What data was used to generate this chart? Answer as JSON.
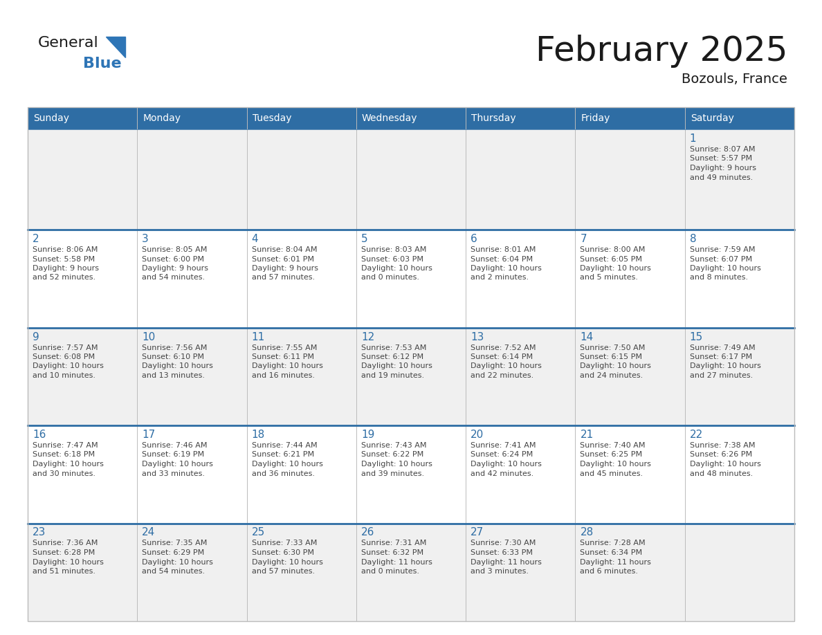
{
  "title": "February 2025",
  "subtitle": "Bozouls, France",
  "header_bg": "#2E6DA4",
  "header_text_color": "#FFFFFF",
  "row_bg": [
    "#F0F0F0",
    "#FFFFFF",
    "#F0F0F0",
    "#FFFFFF",
    "#F0F0F0"
  ],
  "separator_color": "#2E6DA4",
  "day_number_color": "#2E6DA4",
  "text_color": "#444444",
  "weekdays": [
    "Sunday",
    "Monday",
    "Tuesday",
    "Wednesday",
    "Thursday",
    "Friday",
    "Saturday"
  ],
  "days": [
    {
      "day": 1,
      "col": 6,
      "row": 0,
      "sunrise": "8:07 AM",
      "sunset": "5:57 PM",
      "daylight_line1": "Daylight: 9 hours",
      "daylight_line2": "and 49 minutes."
    },
    {
      "day": 2,
      "col": 0,
      "row": 1,
      "sunrise": "8:06 AM",
      "sunset": "5:58 PM",
      "daylight_line1": "Daylight: 9 hours",
      "daylight_line2": "and 52 minutes."
    },
    {
      "day": 3,
      "col": 1,
      "row": 1,
      "sunrise": "8:05 AM",
      "sunset": "6:00 PM",
      "daylight_line1": "Daylight: 9 hours",
      "daylight_line2": "and 54 minutes."
    },
    {
      "day": 4,
      "col": 2,
      "row": 1,
      "sunrise": "8:04 AM",
      "sunset": "6:01 PM",
      "daylight_line1": "Daylight: 9 hours",
      "daylight_line2": "and 57 minutes."
    },
    {
      "day": 5,
      "col": 3,
      "row": 1,
      "sunrise": "8:03 AM",
      "sunset": "6:03 PM",
      "daylight_line1": "Daylight: 10 hours",
      "daylight_line2": "and 0 minutes."
    },
    {
      "day": 6,
      "col": 4,
      "row": 1,
      "sunrise": "8:01 AM",
      "sunset": "6:04 PM",
      "daylight_line1": "Daylight: 10 hours",
      "daylight_line2": "and 2 minutes."
    },
    {
      "day": 7,
      "col": 5,
      "row": 1,
      "sunrise": "8:00 AM",
      "sunset": "6:05 PM",
      "daylight_line1": "Daylight: 10 hours",
      "daylight_line2": "and 5 minutes."
    },
    {
      "day": 8,
      "col": 6,
      "row": 1,
      "sunrise": "7:59 AM",
      "sunset": "6:07 PM",
      "daylight_line1": "Daylight: 10 hours",
      "daylight_line2": "and 8 minutes."
    },
    {
      "day": 9,
      "col": 0,
      "row": 2,
      "sunrise": "7:57 AM",
      "sunset": "6:08 PM",
      "daylight_line1": "Daylight: 10 hours",
      "daylight_line2": "and 10 minutes."
    },
    {
      "day": 10,
      "col": 1,
      "row": 2,
      "sunrise": "7:56 AM",
      "sunset": "6:10 PM",
      "daylight_line1": "Daylight: 10 hours",
      "daylight_line2": "and 13 minutes."
    },
    {
      "day": 11,
      "col": 2,
      "row": 2,
      "sunrise": "7:55 AM",
      "sunset": "6:11 PM",
      "daylight_line1": "Daylight: 10 hours",
      "daylight_line2": "and 16 minutes."
    },
    {
      "day": 12,
      "col": 3,
      "row": 2,
      "sunrise": "7:53 AM",
      "sunset": "6:12 PM",
      "daylight_line1": "Daylight: 10 hours",
      "daylight_line2": "and 19 minutes."
    },
    {
      "day": 13,
      "col": 4,
      "row": 2,
      "sunrise": "7:52 AM",
      "sunset": "6:14 PM",
      "daylight_line1": "Daylight: 10 hours",
      "daylight_line2": "and 22 minutes."
    },
    {
      "day": 14,
      "col": 5,
      "row": 2,
      "sunrise": "7:50 AM",
      "sunset": "6:15 PM",
      "daylight_line1": "Daylight: 10 hours",
      "daylight_line2": "and 24 minutes."
    },
    {
      "day": 15,
      "col": 6,
      "row": 2,
      "sunrise": "7:49 AM",
      "sunset": "6:17 PM",
      "daylight_line1": "Daylight: 10 hours",
      "daylight_line2": "and 27 minutes."
    },
    {
      "day": 16,
      "col": 0,
      "row": 3,
      "sunrise": "7:47 AM",
      "sunset": "6:18 PM",
      "daylight_line1": "Daylight: 10 hours",
      "daylight_line2": "and 30 minutes."
    },
    {
      "day": 17,
      "col": 1,
      "row": 3,
      "sunrise": "7:46 AM",
      "sunset": "6:19 PM",
      "daylight_line1": "Daylight: 10 hours",
      "daylight_line2": "and 33 minutes."
    },
    {
      "day": 18,
      "col": 2,
      "row": 3,
      "sunrise": "7:44 AM",
      "sunset": "6:21 PM",
      "daylight_line1": "Daylight: 10 hours",
      "daylight_line2": "and 36 minutes."
    },
    {
      "day": 19,
      "col": 3,
      "row": 3,
      "sunrise": "7:43 AM",
      "sunset": "6:22 PM",
      "daylight_line1": "Daylight: 10 hours",
      "daylight_line2": "and 39 minutes."
    },
    {
      "day": 20,
      "col": 4,
      "row": 3,
      "sunrise": "7:41 AM",
      "sunset": "6:24 PM",
      "daylight_line1": "Daylight: 10 hours",
      "daylight_line2": "and 42 minutes."
    },
    {
      "day": 21,
      "col": 5,
      "row": 3,
      "sunrise": "7:40 AM",
      "sunset": "6:25 PM",
      "daylight_line1": "Daylight: 10 hours",
      "daylight_line2": "and 45 minutes."
    },
    {
      "day": 22,
      "col": 6,
      "row": 3,
      "sunrise": "7:38 AM",
      "sunset": "6:26 PM",
      "daylight_line1": "Daylight: 10 hours",
      "daylight_line2": "and 48 minutes."
    },
    {
      "day": 23,
      "col": 0,
      "row": 4,
      "sunrise": "7:36 AM",
      "sunset": "6:28 PM",
      "daylight_line1": "Daylight: 10 hours",
      "daylight_line2": "and 51 minutes."
    },
    {
      "day": 24,
      "col": 1,
      "row": 4,
      "sunrise": "7:35 AM",
      "sunset": "6:29 PM",
      "daylight_line1": "Daylight: 10 hours",
      "daylight_line2": "and 54 minutes."
    },
    {
      "day": 25,
      "col": 2,
      "row": 4,
      "sunrise": "7:33 AM",
      "sunset": "6:30 PM",
      "daylight_line1": "Daylight: 10 hours",
      "daylight_line2": "and 57 minutes."
    },
    {
      "day": 26,
      "col": 3,
      "row": 4,
      "sunrise": "7:31 AM",
      "sunset": "6:32 PM",
      "daylight_line1": "Daylight: 11 hours",
      "daylight_line2": "and 0 minutes."
    },
    {
      "day": 27,
      "col": 4,
      "row": 4,
      "sunrise": "7:30 AM",
      "sunset": "6:33 PM",
      "daylight_line1": "Daylight: 11 hours",
      "daylight_line2": "and 3 minutes."
    },
    {
      "day": 28,
      "col": 5,
      "row": 4,
      "sunrise": "7:28 AM",
      "sunset": "6:34 PM",
      "daylight_line1": "Daylight: 11 hours",
      "daylight_line2": "and 6 minutes."
    }
  ],
  "num_rows": 5,
  "num_cols": 7
}
